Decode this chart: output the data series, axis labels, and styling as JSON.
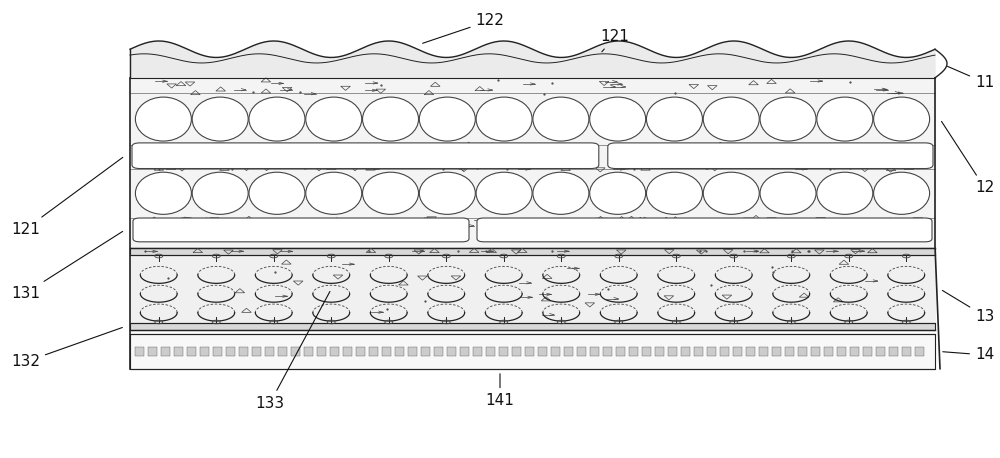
{
  "fig_width": 10.0,
  "fig_height": 4.58,
  "dpi": 100,
  "bg_color": "#ffffff",
  "lc": "#444444",
  "dk": "#222222",
  "white": "#ffffff",
  "light_fill": "#f2f2f2",
  "gray_fill": "#e0e0e0",
  "dark_fill": "#c8c8c8",
  "label_fs": 11,
  "label_color": "#111111"
}
